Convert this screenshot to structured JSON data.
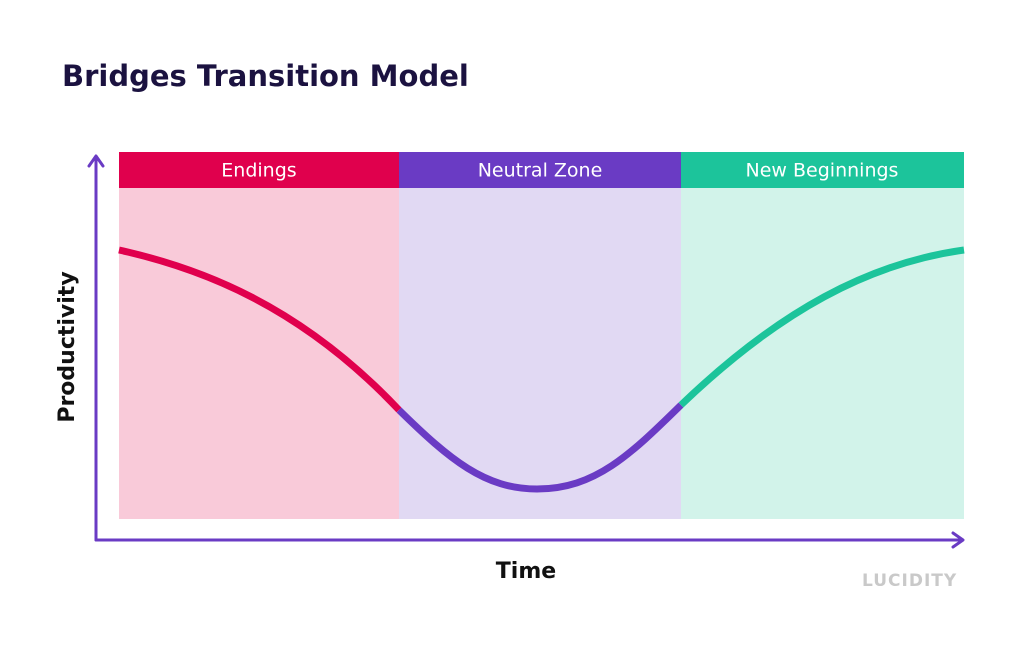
{
  "title": "Bridges Transition Model",
  "phases": [
    {
      "label": "Endings"
    },
    {
      "label": "Neutral Zone"
    },
    {
      "label": "New Beginnings"
    }
  ],
  "y_axis_label": "Productivity",
  "x_axis_label": "Time",
  "logo": "LUCIDITY"
}
